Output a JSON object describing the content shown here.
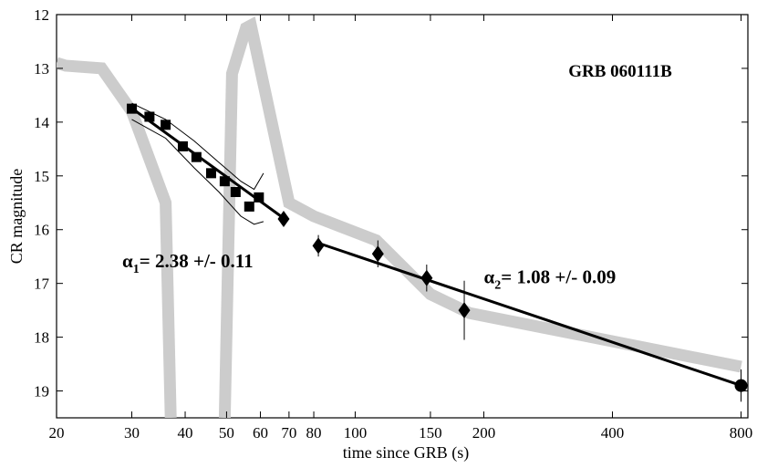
{
  "chart_data": {
    "type": "scatter",
    "title": "GRB 060111B",
    "xlabel": "time since GRB (s)",
    "ylabel": "CR magnitude",
    "xscale": "log",
    "xlim": [
      20,
      830
    ],
    "ylim": [
      19.5,
      12
    ],
    "y_inverted": true,
    "x_ticks": [
      20,
      30,
      40,
      50,
      60,
      70,
      80,
      100,
      150,
      200,
      400,
      800
    ],
    "y_ticks": [
      12,
      13,
      14,
      15,
      16,
      17,
      18,
      19
    ],
    "grid": false,
    "annotations": [
      {
        "id": "alpha1",
        "symbol": "α",
        "sub": "1",
        "text": "= 2.38 +/- 0.11",
        "at": [
          28.5,
          16.7
        ]
      },
      {
        "id": "alpha2",
        "symbol": "α",
        "sub": "2",
        "text": "= 1.08 +/- 0.09",
        "at": [
          200,
          17.0
        ]
      }
    ],
    "series": [
      {
        "marker": "square",
        "points": [
          {
            "x": 30,
            "y": 13.75
          },
          {
            "x": 33,
            "y": 13.9
          },
          {
            "x": 36,
            "y": 14.05
          },
          {
            "x": 39.5,
            "y": 14.45
          },
          {
            "x": 42.5,
            "y": 14.65
          },
          {
            "x": 46,
            "y": 14.95
          },
          {
            "x": 49.5,
            "y": 15.1
          },
          {
            "x": 52.5,
            "y": 15.3
          },
          {
            "x": 56.5,
            "y": 15.57
          },
          {
            "x": 59.5,
            "y": 15.4
          }
        ]
      },
      {
        "marker": "diamond",
        "points": [
          {
            "x": 68,
            "y": 15.8,
            "err": 0.1
          },
          {
            "x": 82,
            "y": 16.3,
            "err": 0.2
          },
          {
            "x": 113,
            "y": 16.45,
            "err": 0.25
          },
          {
            "x": 147,
            "y": 16.9,
            "err": 0.25
          },
          {
            "x": 180,
            "y": 17.5,
            "err": 0.55
          }
        ]
      },
      {
        "marker": "circle",
        "points": [
          {
            "x": 800,
            "y": 18.9,
            "err": 0.3
          }
        ]
      },
      {
        "kind": "fit",
        "points": [
          [
            29.5,
            13.7
          ],
          [
            67,
            15.75
          ]
        ]
      },
      {
        "kind": "fit",
        "points": [
          [
            82,
            16.25
          ],
          [
            800,
            18.9
          ]
        ]
      },
      {
        "kind": "envelope",
        "upper": [
          [
            30,
            13.65
          ],
          [
            36,
            13.95
          ],
          [
            42,
            14.35
          ],
          [
            48,
            14.75
          ],
          [
            54,
            15.1
          ],
          [
            58,
            15.25
          ],
          [
            61,
            14.95
          ]
        ],
        "lower": [
          [
            30,
            13.95
          ],
          [
            36,
            14.3
          ],
          [
            42,
            14.85
          ],
          [
            48,
            15.3
          ],
          [
            54,
            15.75
          ],
          [
            58,
            15.9
          ],
          [
            61,
            15.85
          ]
        ]
      },
      {
        "kind": "band",
        "color": "#cccccc",
        "points": [
          [
            20,
            12.9
          ],
          [
            21,
            12.95
          ],
          [
            25.5,
            13
          ],
          [
            30,
            13.8
          ],
          [
            36,
            15.5
          ],
          [
            37,
            19.5
          ]
        ]
      },
      {
        "kind": "band",
        "color": "#cccccc",
        "points": [
          [
            49.5,
            19.5
          ],
          [
            51.5,
            13.1
          ],
          [
            55.5,
            12.25
          ],
          [
            57,
            12.2
          ],
          [
            70,
            15.5
          ],
          [
            80,
            15.75
          ],
          [
            112,
            16.2
          ],
          [
            150,
            17.2
          ],
          [
            185,
            17.55
          ],
          [
            800,
            18.55
          ]
        ]
      }
    ]
  }
}
